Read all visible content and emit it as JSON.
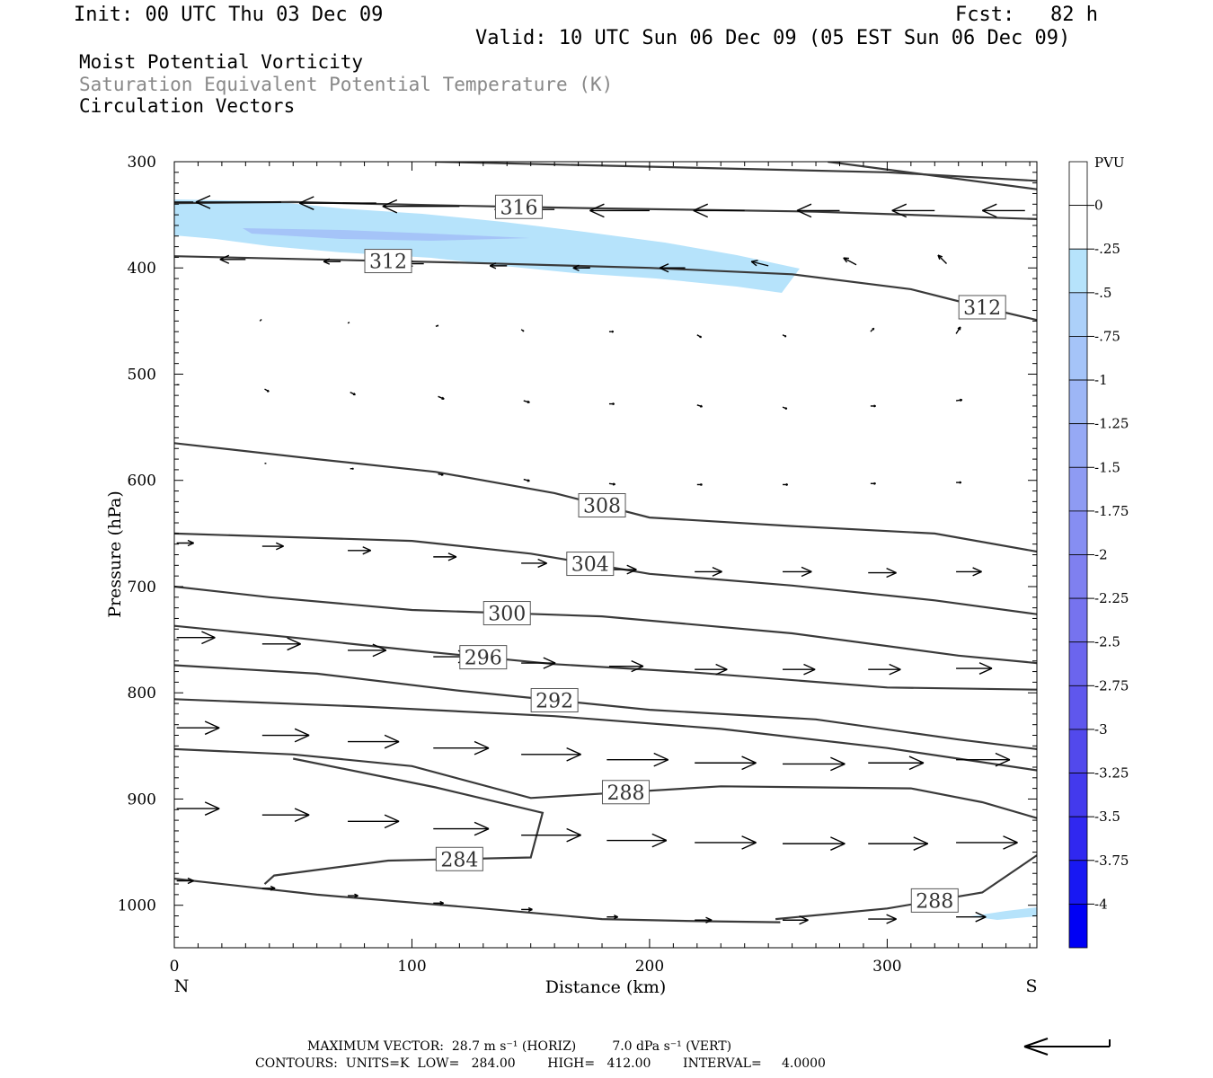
{
  "header": {
    "init": "Init: 00 UTC Thu 03 Dec 09",
    "fcst": "Fcst:   82 h",
    "valid": "Valid: 10 UTC Sun 06 Dec 09 (05 EST Sun 06 Dec 09)"
  },
  "fields": {
    "f1": "Moist Potential Vorticity",
    "f2": "Saturation Equivalent Potential Temperature (K)",
    "f3": "Circulation Vectors"
  },
  "colors": {
    "gray_text": "#888888",
    "contour": "#3a3a3a",
    "shade_light": "#b6e3fb",
    "shade_mid": "#a5c4f8"
  },
  "chart_data": {
    "type": "cross-section",
    "xlabel": "Distance (km)",
    "ylabel": "Pressure (hPa)",
    "xlim": [
      0,
      363
    ],
    "ylim": [
      1040,
      300
    ],
    "x_ticks": [
      0,
      100,
      200,
      300
    ],
    "y_ticks": [
      300,
      400,
      500,
      600,
      700,
      800,
      900,
      1000
    ],
    "left_end": "N",
    "right_end": "S",
    "colorbar": {
      "title": "PVU",
      "labels": [
        "0",
        "-.25",
        "-.5",
        "-.75",
        "-1",
        "-1.25",
        "-1.5",
        "-1.75",
        "-2",
        "-2.25",
        "-2.5",
        "-2.75",
        "-3",
        "-3.25",
        "-3.5",
        "-3.75",
        "-4"
      ],
      "colors": [
        "#ffffff",
        "#ffffff",
        "#b6e3fb",
        "#acd0f9",
        "#a5c4f8",
        "#9db6f6",
        "#96a9f5",
        "#8e9bf3",
        "#868ef2",
        "#7f80f0",
        "#7673ef",
        "#6b65ee",
        "#5f57ed",
        "#5249ec",
        "#433aed",
        "#3028f0",
        "#1818f3",
        "#0000f5"
      ]
    },
    "contours": [
      {
        "label": "316",
        "points": [
          [
            0,
            339
          ],
          [
            50,
            338
          ],
          [
            110,
            341
          ],
          [
            180,
            344
          ],
          [
            270,
            347
          ],
          [
            363,
            354
          ]
        ]
      },
      {
        "label": "312",
        "points": [
          [
            0,
            389
          ],
          [
            60,
            392
          ],
          [
            120,
            395
          ],
          [
            200,
            400
          ],
          [
            260,
            406
          ],
          [
            310,
            420
          ],
          [
            340,
            437
          ],
          [
            363,
            449
          ]
        ]
      },
      {
        "points": [
          [
            110,
            300
          ],
          [
            300,
            310
          ],
          [
            363,
            318
          ]
        ]
      },
      {
        "points": [
          [
            275,
            300
          ],
          [
            363,
            326
          ]
        ]
      },
      {
        "label": "308",
        "points": [
          [
            0,
            565
          ],
          [
            60,
            580
          ],
          [
            110,
            592
          ],
          [
            160,
            612
          ],
          [
            200,
            635
          ],
          [
            260,
            643
          ],
          [
            320,
            650
          ],
          [
            363,
            667
          ]
        ]
      },
      {
        "label": "304",
        "points": [
          [
            0,
            650
          ],
          [
            100,
            657
          ],
          [
            150,
            669
          ],
          [
            200,
            688
          ],
          [
            260,
            699
          ],
          [
            320,
            713
          ],
          [
            363,
            726
          ]
        ]
      },
      {
        "label": "300",
        "points": [
          [
            0,
            700
          ],
          [
            40,
            710
          ],
          [
            100,
            722
          ],
          [
            180,
            728
          ],
          [
            260,
            744
          ],
          [
            330,
            765
          ],
          [
            363,
            772
          ]
        ]
      },
      {
        "label": "296",
        "points": [
          [
            0,
            737
          ],
          [
            50,
            748
          ],
          [
            100,
            760
          ],
          [
            160,
            773
          ],
          [
            220,
            781
          ],
          [
            300,
            795
          ],
          [
            363,
            797
          ]
        ]
      },
      {
        "label": "292",
        "points": [
          [
            0,
            774
          ],
          [
            60,
            782
          ],
          [
            120,
            798
          ],
          [
            200,
            816
          ],
          [
            270,
            825
          ],
          [
            330,
            844
          ],
          [
            363,
            853
          ]
        ]
      },
      {
        "points": [
          [
            0,
            806
          ],
          [
            80,
            813
          ],
          [
            160,
            822
          ],
          [
            230,
            834
          ],
          [
            300,
            852
          ],
          [
            363,
            873
          ]
        ]
      },
      {
        "label": "288",
        "points": [
          [
            0,
            853
          ],
          [
            50,
            858
          ],
          [
            100,
            869
          ],
          [
            150,
            899
          ],
          [
            230,
            888
          ],
          [
            310,
            890
          ],
          [
            340,
            903
          ],
          [
            363,
            918
          ]
        ]
      },
      {
        "label": "284",
        "points": [
          [
            38,
            980
          ],
          [
            42,
            972
          ],
          [
            90,
            958
          ],
          [
            150,
            955
          ],
          [
            155,
            913
          ],
          [
            110,
            889
          ],
          [
            50,
            862
          ]
        ]
      },
      {
        "points": [
          [
            0,
            975
          ],
          [
            60,
            990
          ],
          [
            130,
            1003
          ],
          [
            180,
            1013
          ],
          [
            220,
            1015
          ],
          [
            255,
            1016
          ]
        ]
      },
      {
        "label": "288",
        "points": [
          [
            253,
            1013
          ],
          [
            300,
            1003
          ],
          [
            340,
            988
          ],
          [
            363,
            953
          ]
        ]
      }
    ],
    "vectors": [
      {
        "x": 8,
        "p": 338,
        "u": -1.0,
        "w": 0.0
      },
      {
        "x": 45,
        "p": 338,
        "u": -1.0,
        "w": 0.0
      },
      {
        "x": 85,
        "p": 339,
        "u": -0.9,
        "w": 0.0
      },
      {
        "x": 120,
        "p": 342,
        "u": -0.9,
        "w": 0.0
      },
      {
        "x": 160,
        "p": 345,
        "u": -0.7,
        "w": 0.0
      },
      {
        "x": 200,
        "p": 346,
        "u": -0.7,
        "w": 0.0
      },
      {
        "x": 240,
        "p": 346,
        "u": -0.6,
        "w": 0.0
      },
      {
        "x": 280,
        "p": 346,
        "u": -0.5,
        "w": 0.0
      },
      {
        "x": 320,
        "p": 346,
        "u": -0.5,
        "w": 0.0
      },
      {
        "x": 358,
        "p": 346,
        "u": -0.5,
        "w": 0.0
      },
      {
        "x": 30,
        "p": 392,
        "u": -0.3,
        "w": 0.0
      },
      {
        "x": 70,
        "p": 394,
        "u": -0.2,
        "w": 0.0
      },
      {
        "x": 105,
        "p": 396,
        "u": -0.2,
        "w": 0.0
      },
      {
        "x": 140,
        "p": 398,
        "u": -0.2,
        "w": 0.0
      },
      {
        "x": 175,
        "p": 400,
        "u": -0.2,
        "w": 0.0
      },
      {
        "x": 215,
        "p": 400,
        "u": -0.3,
        "w": 0.0
      },
      {
        "x": 250,
        "p": 398,
        "u": -0.2,
        "w": 0.05
      },
      {
        "x": 287,
        "p": 397,
        "u": -0.15,
        "w": 0.08
      },
      {
        "x": 325,
        "p": 396,
        "u": -0.1,
        "w": 0.1
      },
      {
        "x": 36,
        "p": 450,
        "u": 0.02,
        "w": 0.02
      },
      {
        "x": 73,
        "p": 452,
        "u": 0.02,
        "w": 0.01
      },
      {
        "x": 110,
        "p": 455,
        "u": 0.03,
        "w": 0.01
      },
      {
        "x": 146,
        "p": 458,
        "u": 0.03,
        "w": -0.02
      },
      {
        "x": 183,
        "p": 460,
        "u": 0.05,
        "w": 0.0
      },
      {
        "x": 220,
        "p": 463,
        "u": 0.05,
        "w": -0.03
      },
      {
        "x": 256,
        "p": 463,
        "u": 0.04,
        "w": -0.02
      },
      {
        "x": 293,
        "p": 460,
        "u": 0.04,
        "w": 0.04
      },
      {
        "x": 329,
        "p": 462,
        "u": 0.05,
        "w": 0.08
      },
      {
        "x": 1,
        "p": 510,
        "u": 0.03,
        "w": 0.0
      },
      {
        "x": 38,
        "p": 514,
        "u": 0.05,
        "w": -0.03
      },
      {
        "x": 74,
        "p": 517,
        "u": 0.06,
        "w": -0.03
      },
      {
        "x": 111,
        "p": 521,
        "u": 0.07,
        "w": -0.03
      },
      {
        "x": 147,
        "p": 525,
        "u": 0.07,
        "w": -0.02
      },
      {
        "x": 183,
        "p": 528,
        "u": 0.06,
        "w": 0.0
      },
      {
        "x": 220,
        "p": 529,
        "u": 0.06,
        "w": -0.02
      },
      {
        "x": 256,
        "p": 531,
        "u": 0.05,
        "w": -0.02
      },
      {
        "x": 293,
        "p": 530,
        "u": 0.06,
        "w": 0.0
      },
      {
        "x": 329,
        "p": 525,
        "u": 0.07,
        "w": 0.01
      },
      {
        "x": 38,
        "p": 584,
        "u": 0.02,
        "w": 0.0
      },
      {
        "x": 74,
        "p": 589,
        "u": 0.04,
        "w": 0.0
      },
      {
        "x": 111,
        "p": 594,
        "u": 0.06,
        "w": -0.01
      },
      {
        "x": 147,
        "p": 599,
        "u": 0.07,
        "w": -0.02
      },
      {
        "x": 183,
        "p": 603,
        "u": 0.07,
        "w": -0.01
      },
      {
        "x": 220,
        "p": 604,
        "u": 0.06,
        "w": 0.0
      },
      {
        "x": 256,
        "p": 604,
        "u": 0.06,
        "w": 0.0
      },
      {
        "x": 293,
        "p": 603,
        "u": 0.06,
        "w": 0.0
      },
      {
        "x": 329,
        "p": 602,
        "u": 0.06,
        "w": 0.0
      },
      {
        "x": 1,
        "p": 659,
        "u": 0.2,
        "w": 0.0
      },
      {
        "x": 37,
        "p": 662,
        "u": 0.25,
        "w": 0.0
      },
      {
        "x": 73,
        "p": 666,
        "u": 0.27,
        "w": 0.0
      },
      {
        "x": 109,
        "p": 672,
        "u": 0.27,
        "w": 0.0
      },
      {
        "x": 146,
        "p": 678,
        "u": 0.3,
        "w": 0.0
      },
      {
        "x": 183,
        "p": 684,
        "u": 0.32,
        "w": 0.0
      },
      {
        "x": 219,
        "p": 686,
        "u": 0.32,
        "w": 0.0
      },
      {
        "x": 256,
        "p": 686,
        "u": 0.34,
        "w": 0.0
      },
      {
        "x": 292,
        "p": 687,
        "u": 0.33,
        "w": 0.0
      },
      {
        "x": 329,
        "p": 686,
        "u": 0.3,
        "w": 0.0
      },
      {
        "x": 1,
        "p": 748,
        "u": 0.45,
        "w": 0.0
      },
      {
        "x": 37,
        "p": 754,
        "u": 0.45,
        "w": 0.0
      },
      {
        "x": 73,
        "p": 760,
        "u": 0.45,
        "w": 0.0
      },
      {
        "x": 109,
        "p": 766,
        "u": 0.45,
        "w": 0.0
      },
      {
        "x": 146,
        "p": 772,
        "u": 0.4,
        "w": 0.0
      },
      {
        "x": 183,
        "p": 775,
        "u": 0.4,
        "w": 0.0
      },
      {
        "x": 219,
        "p": 778,
        "u": 0.38,
        "w": 0.0
      },
      {
        "x": 256,
        "p": 778,
        "u": 0.38,
        "w": 0.0
      },
      {
        "x": 292,
        "p": 778,
        "u": 0.38,
        "w": 0.0
      },
      {
        "x": 329,
        "p": 777,
        "u": 0.42,
        "w": 0.0
      },
      {
        "x": 1,
        "p": 833,
        "u": 0.5,
        "w": 0.0
      },
      {
        "x": 37,
        "p": 840,
        "u": 0.55,
        "w": 0.0
      },
      {
        "x": 73,
        "p": 846,
        "u": 0.6,
        "w": 0.0
      },
      {
        "x": 109,
        "p": 852,
        "u": 0.65,
        "w": 0.0
      },
      {
        "x": 146,
        "p": 858,
        "u": 0.7,
        "w": 0.0
      },
      {
        "x": 182,
        "p": 863,
        "u": 0.72,
        "w": 0.0
      },
      {
        "x": 219,
        "p": 866,
        "u": 0.72,
        "w": 0.0
      },
      {
        "x": 256,
        "p": 867,
        "u": 0.73,
        "w": 0.0
      },
      {
        "x": 292,
        "p": 866,
        "u": 0.65,
        "w": 0.0
      },
      {
        "x": 329,
        "p": 863,
        "u": 0.63,
        "w": 0.0
      },
      {
        "x": 1,
        "p": 909,
        "u": 0.5,
        "w": 0.0
      },
      {
        "x": 37,
        "p": 915,
        "u": 0.55,
        "w": 0.0
      },
      {
        "x": 73,
        "p": 921,
        "u": 0.6,
        "w": 0.0
      },
      {
        "x": 109,
        "p": 928,
        "u": 0.65,
        "w": 0.0
      },
      {
        "x": 146,
        "p": 934,
        "u": 0.7,
        "w": 0.0
      },
      {
        "x": 182,
        "p": 939,
        "u": 0.7,
        "w": 0.0
      },
      {
        "x": 219,
        "p": 941,
        "u": 0.72,
        "w": 0.0
      },
      {
        "x": 256,
        "p": 942,
        "u": 0.73,
        "w": 0.0
      },
      {
        "x": 292,
        "p": 942,
        "u": 0.7,
        "w": 0.0
      },
      {
        "x": 329,
        "p": 941,
        "u": 0.72,
        "w": 0.0
      },
      {
        "x": 1,
        "p": 977,
        "u": 0.2,
        "w": 0.0
      },
      {
        "x": 37,
        "p": 984,
        "u": 0.15,
        "w": 0.0
      },
      {
        "x": 73,
        "p": 991,
        "u": 0.12,
        "w": 0.0
      },
      {
        "x": 109,
        "p": 998,
        "u": 0.12,
        "w": 0.0
      },
      {
        "x": 146,
        "p": 1004,
        "u": 0.13,
        "w": 0.0
      },
      {
        "x": 182,
        "p": 1011,
        "u": 0.13,
        "w": 0.0
      },
      {
        "x": 219,
        "p": 1014,
        "u": 0.2,
        "w": 0.0
      },
      {
        "x": 256,
        "p": 1014,
        "u": 0.3,
        "w": 0.0
      },
      {
        "x": 292,
        "p": 1013,
        "u": 0.33,
        "w": 0.0
      },
      {
        "x": 329,
        "p": 1011,
        "u": 0.35,
        "w": 0.0
      }
    ]
  },
  "footer": {
    "max_vector": "MAXIMUM VECTOR:  28.7 m s⁻¹ (HORIZ)         7.0 dPa s⁻¹ (VERT)",
    "contours": "CONTOURS:  UNITS=K  LOW=   284.00        HIGH=   412.00        INTERVAL=     4.0000"
  }
}
